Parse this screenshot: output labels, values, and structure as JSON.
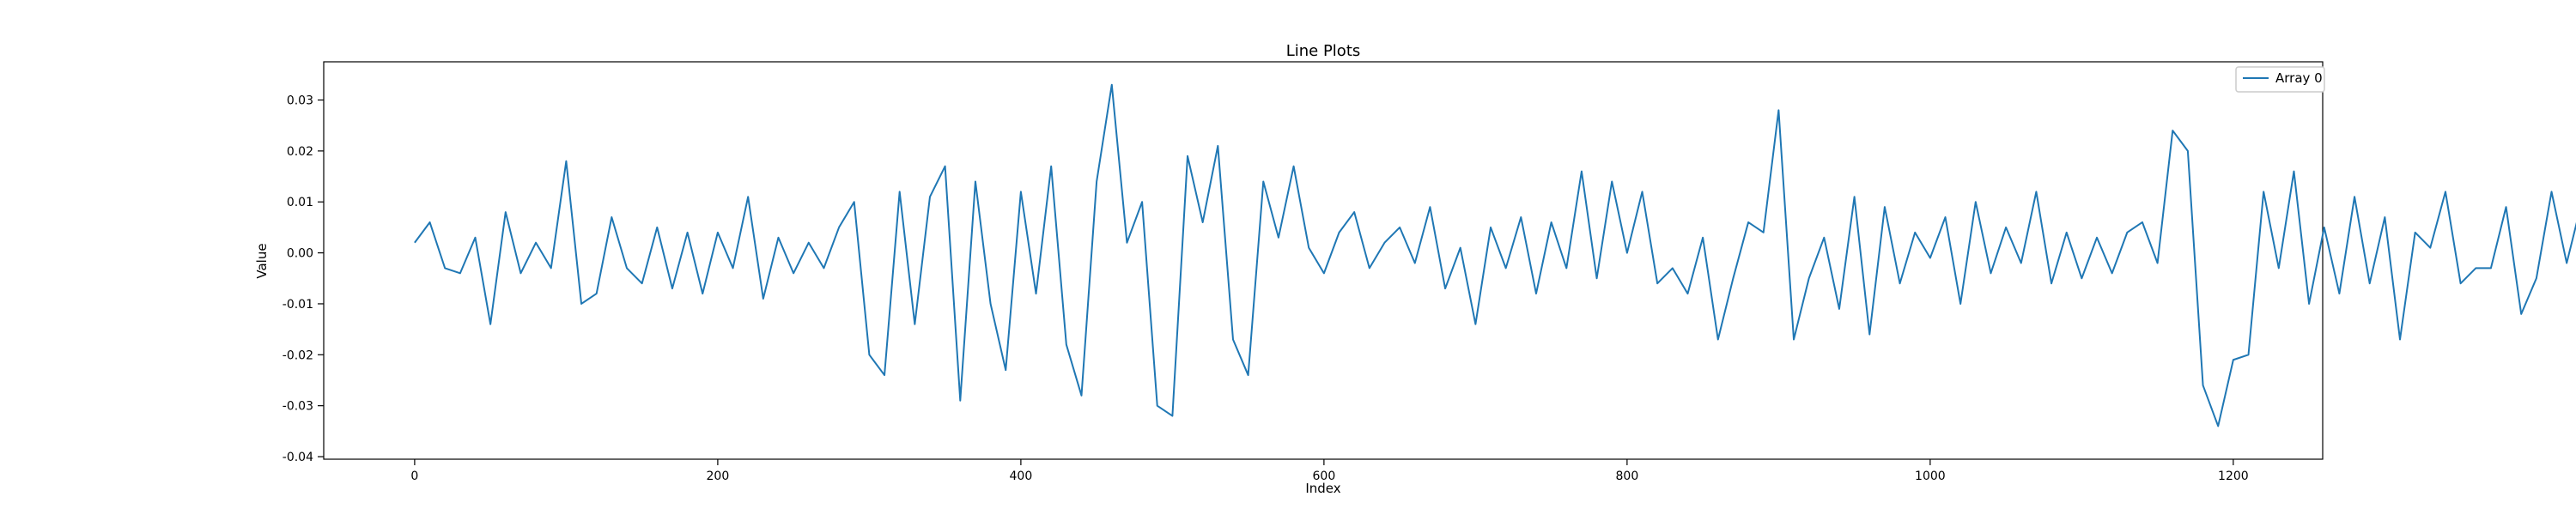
{
  "chart_data": {
    "type": "line",
    "title": "Line Plots",
    "xlabel": "Index",
    "ylabel": "Value",
    "xlim": [
      -60,
      1259
    ],
    "ylim": [
      -0.0405,
      0.0375
    ],
    "x_ticks": [
      0,
      200,
      400,
      600,
      800,
      1000,
      1200
    ],
    "y_ticks": [
      -0.04,
      -0.03,
      -0.02,
      -0.01,
      0.0,
      0.01,
      0.02,
      0.03
    ],
    "y_tick_labels": [
      "-0.04",
      "-0.03",
      "-0.02",
      "-0.01",
      "0.00",
      "0.01",
      "0.02",
      "0.03"
    ],
    "grid": false,
    "legend_position": "top-right",
    "series": [
      {
        "name": "Array 0",
        "color": "#1f77b4",
        "x_start": 0,
        "x_step": 10,
        "values": [
          0.002,
          0.006,
          -0.003,
          -0.004,
          0.003,
          -0.014,
          0.008,
          -0.004,
          0.002,
          -0.003,
          0.018,
          -0.01,
          -0.008,
          0.007,
          -0.003,
          -0.006,
          0.005,
          -0.007,
          0.004,
          -0.008,
          0.004,
          -0.003,
          0.011,
          -0.009,
          0.003,
          -0.004,
          0.002,
          -0.003,
          0.005,
          0.01,
          -0.02,
          -0.024,
          0.012,
          -0.014,
          0.011,
          0.017,
          -0.029,
          0.014,
          -0.01,
          -0.023,
          0.012,
          -0.008,
          0.017,
          -0.018,
          -0.028,
          0.014,
          0.033,
          0.002,
          0.01,
          -0.03,
          -0.032,
          0.019,
          0.006,
          0.021,
          -0.017,
          -0.024,
          0.014,
          0.003,
          0.017,
          0.001,
          -0.004,
          0.004,
          0.008,
          -0.003,
          0.002,
          0.005,
          -0.002,
          0.009,
          -0.007,
          0.001,
          -0.014,
          0.005,
          -0.003,
          0.007,
          -0.008,
          0.006,
          -0.003,
          0.016,
          -0.005,
          0.014,
          0.0,
          0.012,
          -0.006,
          -0.003,
          -0.008,
          0.003,
          -0.017,
          -0.005,
          0.006,
          0.004,
          0.028,
          -0.017,
          -0.005,
          0.003,
          -0.011,
          0.011,
          -0.016,
          0.009,
          -0.006,
          0.004,
          -0.001,
          0.007,
          -0.01,
          0.01,
          -0.004,
          0.005,
          -0.002,
          0.012,
          -0.006,
          0.004,
          -0.005,
          0.003,
          -0.004,
          0.004,
          0.006,
          -0.002,
          0.024,
          0.02,
          -0.026,
          -0.034,
          -0.021,
          -0.02,
          0.012,
          -0.003,
          0.016,
          -0.01,
          0.005,
          -0.008,
          0.011,
          -0.006,
          0.007,
          -0.017,
          0.004,
          0.001,
          0.012,
          -0.006,
          -0.003,
          -0.003,
          0.009,
          -0.012,
          -0.005,
          0.012,
          -0.002,
          0.01,
          -0.006,
          0.003,
          0.006,
          -0.012,
          0.004,
          0.0,
          0.012,
          -0.003,
          -0.006,
          0.008,
          -0.013,
          0.008,
          -0.003,
          0.004,
          -0.012,
          -0.002,
          -0.005,
          0.012,
          -0.007,
          0.005,
          0.01,
          -0.006,
          0.004,
          -0.002,
          0.009,
          -0.008,
          -0.004,
          -0.007,
          0.013,
          -0.02,
          0.004,
          -0.006,
          0.01,
          0.002,
          -0.002,
          -0.008,
          0.005,
          -0.009,
          0.003,
          0.009,
          -0.006,
          0.003,
          -0.004,
          0.006,
          -0.004,
          0.003,
          0.002,
          -0.003,
          0.007,
          -0.012,
          0.003,
          0.011,
          -0.014,
          0.0,
          -0.005,
          0.005,
          0.005,
          -0.01,
          0.008,
          0.012,
          -0.012,
          0.003,
          -0.007,
          0.005,
          -0.006,
          0.001,
          0.023,
          -0.026,
          0.016,
          -0.006,
          -0.015,
          0.01,
          0.031,
          0.011,
          -0.009,
          0.018,
          -0.018,
          0.008,
          0.003,
          -0.011,
          0.007,
          -0.013,
          0.01,
          -0.009,
          0.011,
          -0.003,
          0.006,
          -0.013,
          0.014,
          0.0,
          -0.006,
          0.004,
          0.01,
          -0.02,
          0.009,
          -0.011,
          0.011,
          0.003,
          0.008,
          -0.006,
          -0.004,
          0.009,
          0.003,
          -0.005,
          0.006,
          -0.009,
          0.008,
          -0.003,
          -0.01,
          0.01,
          -0.008,
          -0.006,
          0.014,
          0.001,
          -0.006,
          0.005,
          0.004,
          -0.005,
          0.008,
          -0.003,
          0.003,
          -0.006,
          0.013,
          -0.012,
          0.012,
          0.003,
          -0.004,
          -0.008,
          0.006,
          -0.007,
          0.01,
          0.006,
          -0.011,
          0.004,
          0.009,
          -0.002,
          -0.009,
          0.012,
          0.0,
          -0.006,
          0.006,
          -0.004,
          0.011,
          -0.002,
          -0.007,
          0.006,
          0.005,
          -0.01,
          0.004,
          0.009,
          -0.012,
          0.0,
          0.006,
          -0.005,
          0.002,
          -0.004,
          0.012,
          -0.023,
          0.013,
          -0.004,
          0.011,
          -0.01,
          0.008,
          0.022,
          -0.006,
          0.0,
          -0.003,
          0.006,
          -0.011,
          0.004,
          -0.009,
          0.016,
          -0.006,
          0.012,
          -0.003,
          0.003,
          -0.004,
          0.008,
          0.005,
          -0.008,
          0.004,
          -0.002,
          0.009,
          -0.007,
          0.01,
          0.0,
          0.008,
          -0.006,
          0.012,
          -0.005,
          0.005,
          -0.006,
          0.01,
          -0.009,
          0.003,
          -0.003,
          0.012,
          -0.012,
          0.014,
          0.0,
          0.006,
          -0.004,
          0.008,
          -0.004,
          0.005,
          -0.003,
          0.007,
          -0.004,
          0.006,
          -0.005,
          0.009,
          0.0,
          0.003,
          -0.002,
          0.004,
          -0.003
        ]
      }
    ]
  }
}
